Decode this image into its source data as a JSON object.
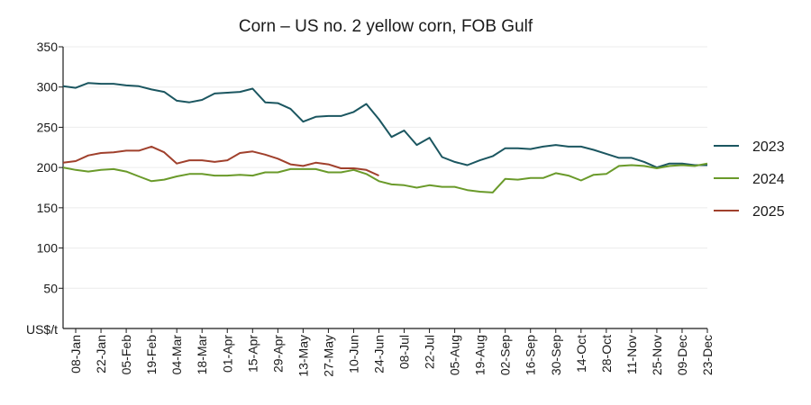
{
  "chart_data": {
    "type": "line",
    "title": "Corn – US no. 2 yellow corn, FOB Gulf",
    "ylabel": "US$/t",
    "ylim": [
      0,
      350
    ],
    "yticks": [
      50,
      100,
      150,
      200,
      250,
      300,
      350
    ],
    "grid": true,
    "legend_position": "right",
    "x_tick_labels": [
      "08-Jan",
      "22-Jan",
      "05-Feb",
      "19-Feb",
      "04-Mar",
      "18-Mar",
      "01-Apr",
      "15-Apr",
      "29-Apr",
      "13-May",
      "27-May",
      "10-Jun",
      "24-Jun",
      "08-Jul",
      "22-Jul",
      "05-Aug",
      "19-Aug",
      "02-Sep",
      "16-Sep",
      "30-Sep",
      "14-Oct",
      "28-Oct",
      "11-Nov",
      "25-Nov",
      "09-Dec",
      "23-Dec"
    ],
    "series": [
      {
        "name": "2023",
        "color": "#1b5660",
        "values": [
          301,
          299,
          305,
          304,
          304,
          302,
          301,
          297,
          294,
          283,
          281,
          284,
          292,
          293,
          294,
          298,
          281,
          280,
          273,
          257,
          263,
          264,
          264,
          269,
          279,
          260,
          238,
          246,
          228,
          237,
          213,
          207,
          203,
          209,
          214,
          224,
          224,
          223,
          226,
          228,
          226,
          226,
          222,
          217,
          212,
          212,
          207,
          200,
          205,
          205,
          203,
          203
        ]
      },
      {
        "name": "2024",
        "color": "#6a9a2a",
        "values": [
          200,
          197,
          195,
          197,
          198,
          195,
          189,
          183,
          185,
          189,
          192,
          192,
          190,
          190,
          191,
          190,
          194,
          194,
          198,
          198,
          198,
          194,
          194,
          197,
          192,
          183,
          179,
          178,
          175,
          178,
          176,
          176,
          172,
          170,
          169,
          186,
          185,
          187,
          187,
          193,
          190,
          184,
          191,
          192,
          202,
          203,
          202,
          199,
          202,
          203,
          202,
          205
        ]
      },
      {
        "name": "2025",
        "color": "#a0402c",
        "values": [
          206,
          208,
          215,
          218,
          219,
          221,
          221,
          226,
          219,
          205,
          209,
          209,
          207,
          209,
          218,
          220,
          216,
          211,
          204,
          202,
          206,
          204,
          199,
          199,
          197,
          190
        ]
      }
    ]
  }
}
